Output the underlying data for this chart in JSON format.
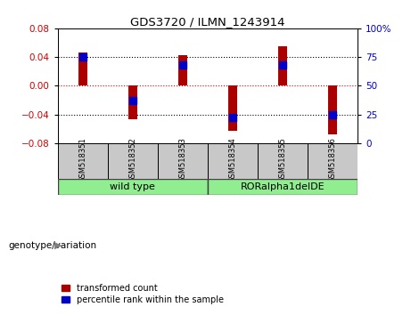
{
  "title": "GDS3720 / ILMN_1243914",
  "samples": [
    "GSM518351",
    "GSM518352",
    "GSM518353",
    "GSM518354",
    "GSM518355",
    "GSM518356"
  ],
  "group_labels": [
    "wild type",
    "RORalpha1delDE"
  ],
  "transformed_count": [
    0.046,
    -0.047,
    0.043,
    -0.063,
    0.055,
    -0.068
  ],
  "percentile_rank_pct": [
    75,
    37,
    68,
    22,
    68,
    25
  ],
  "ylim_left": [
    -0.08,
    0.08
  ],
  "ylim_right": [
    0,
    100
  ],
  "yticks_left": [
    -0.08,
    -0.04,
    0,
    0.04,
    0.08
  ],
  "yticks_right": [
    0,
    25,
    50,
    75,
    100
  ],
  "bar_color": "#AA0000",
  "dot_color": "#0000CC",
  "bg_color": "#FFFFFF",
  "ylabel_left_color": "#CC0000",
  "ylabel_right_color": "#0000CC",
  "genotype_label": "genotype/variation",
  "legend_items": [
    "transformed count",
    "percentile rank within the sample"
  ],
  "bar_width": 0.18,
  "dot_size": 30,
  "cell_color": "#C8C8C8",
  "group_color": "#90EE90"
}
